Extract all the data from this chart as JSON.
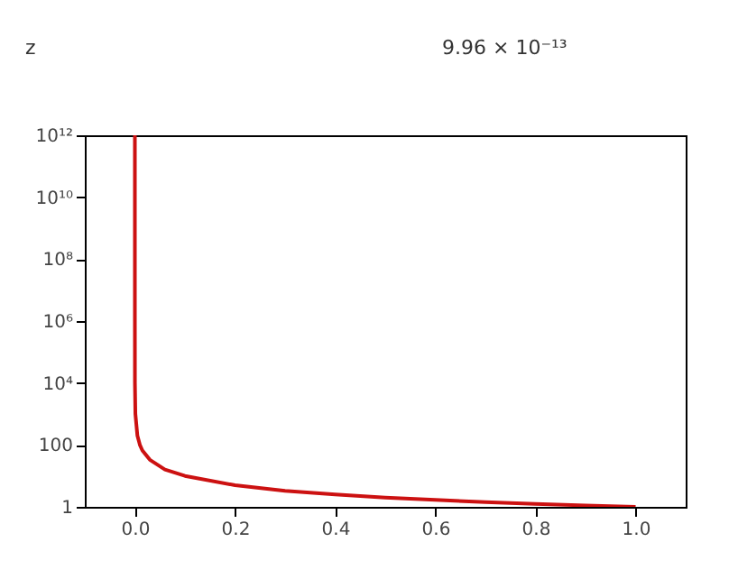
{
  "chart_data": {
    "type": "line",
    "log": "y",
    "grid": false,
    "line_style": "solid",
    "marker": "none",
    "annotations": [
      "z",
      "9.96 × 10⁻¹³"
    ],
    "x": [
      1e-12,
      1e-10,
      1e-08,
      1e-06,
      0.0001,
      0.001,
      0.005,
      0.01,
      0.015,
      0.03,
      0.06,
      0.1,
      0.2,
      0.3,
      0.4,
      0.5,
      0.6,
      0.7,
      0.8,
      0.9,
      1.0
    ],
    "series": [
      {
        "color": "#cc1111",
        "values": [
          1000000000000.0,
          10000000000.0,
          100000000.0,
          1000000.0,
          10000,
          1000,
          200,
          100,
          66,
          33,
          16,
          10,
          5,
          3.3,
          2.5,
          2,
          1.67,
          1.43,
          1.25,
          1.11,
          1
        ]
      }
    ],
    "xlim": [
      -0.1,
      1.1
    ],
    "ylim": [
      1,
      1000000000000.0
    ],
    "xticks": [
      {
        "value": 0,
        "label": "0.0"
      },
      {
        "value": 0.2,
        "label": "0.2"
      },
      {
        "value": 0.4,
        "label": "0.4"
      },
      {
        "value": 0.6,
        "label": "0.6"
      },
      {
        "value": 0.8,
        "label": "0.8"
      },
      {
        "value": 1,
        "label": "1.0"
      }
    ],
    "yticks": [
      1,
      100,
      {
        "value": 10000,
        "label": "10⁴"
      },
      {
        "value": 1000000.0,
        "label": "10⁶"
      },
      {
        "value": 100000000.0,
        "label": "10⁸"
      },
      {
        "value": 10000000000.0,
        "label": "10¹⁰"
      },
      {
        "value": 1000000000000.0,
        "label": "10¹²"
      }
    ]
  }
}
